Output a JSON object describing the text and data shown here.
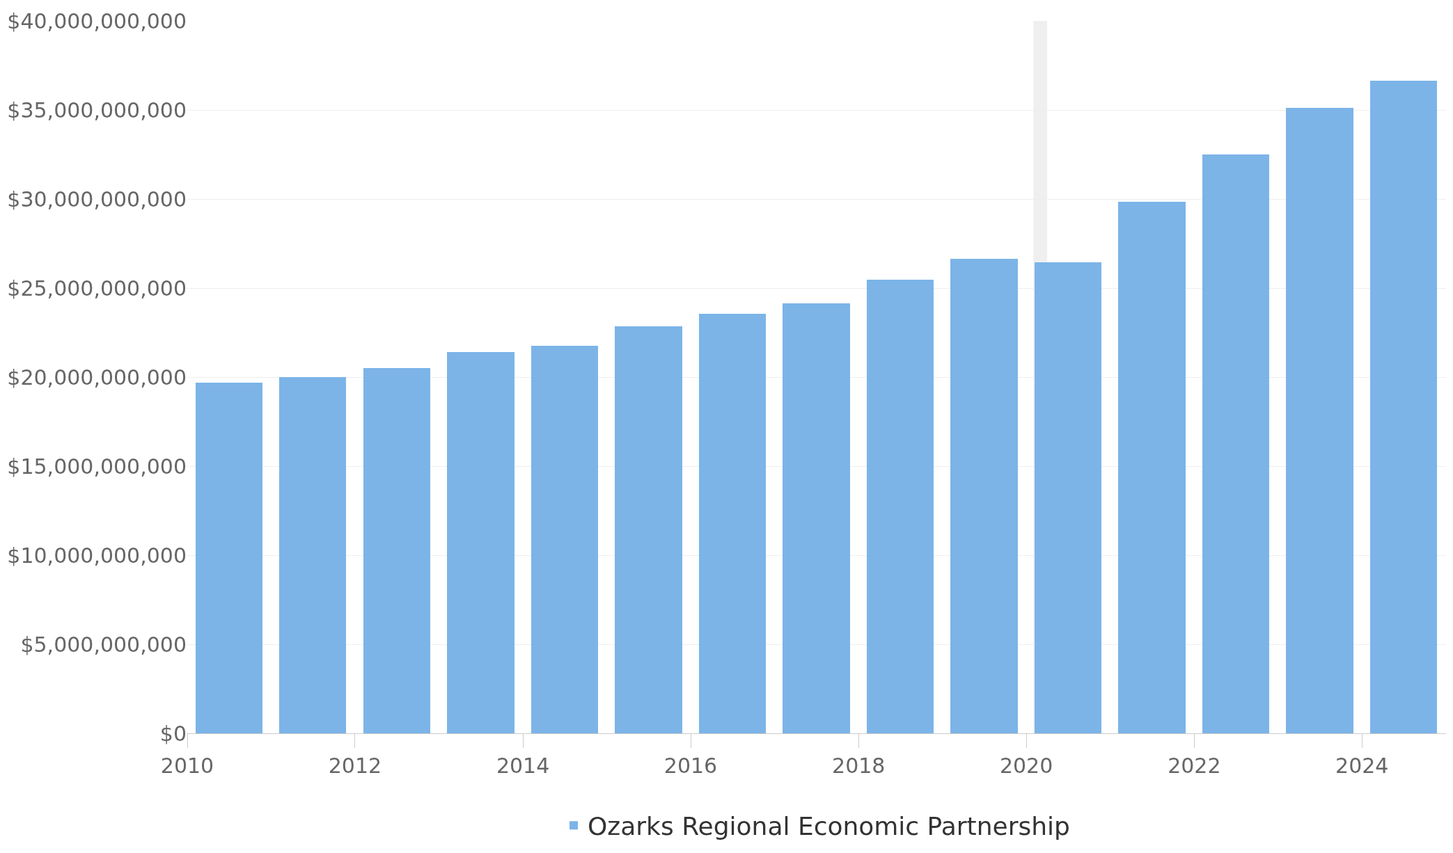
{
  "chart_data": {
    "type": "bar",
    "x": [
      "2010-07-01",
      "2011-07-01",
      "2012-07-01",
      "2013-07-01",
      "2014-07-01",
      "2015-07-01",
      "2016-07-01",
      "2017-07-01",
      "2018-07-01",
      "2019-07-01",
      "2020-07-01",
      "2021-07-01",
      "2022-07-01",
      "2023-07-01",
      "2024-07-01"
    ],
    "series": [
      {
        "name": "Ozarks Regional Economic Partnership",
        "color": "#7cb4e8",
        "values": [
          19700000000,
          20000000000,
          20500000000,
          21400000000,
          21750000000,
          22850000000,
          23550000000,
          24150000000,
          25450000000,
          26650000000,
          26450000000,
          29850000000,
          32500000000,
          35100000000,
          36650000000
        ]
      }
    ],
    "xlim": [
      "2010-01-01",
      "2025-01-01"
    ],
    "xticks": [
      {
        "value": "2010-01-01",
        "label": "2010"
      },
      {
        "value": "2012-01-01",
        "label": "2012"
      },
      {
        "value": "2014-01-01",
        "label": "2014"
      },
      {
        "value": "2016-01-01",
        "label": "2016"
      },
      {
        "value": "2018-01-01",
        "label": "2018"
      },
      {
        "value": "2020-01-01",
        "label": "2020"
      },
      {
        "value": "2022-01-01",
        "label": "2022"
      },
      {
        "value": "2024-01-01",
        "label": "2024"
      }
    ],
    "ylim": [
      0,
      40000000000
    ],
    "yticks": [
      {
        "value": 0,
        "label": "$0"
      },
      {
        "value": 5000000000,
        "label": "$5,000,000,000"
      },
      {
        "value": 10000000000,
        "label": "$10,000,000,000"
      },
      {
        "value": 15000000000,
        "label": "$15,000,000,000"
      },
      {
        "value": 20000000000,
        "label": "$20,000,000,000"
      },
      {
        "value": 25000000000,
        "label": "$25,000,000,000"
      },
      {
        "value": 30000000000,
        "label": "$30,000,000,000"
      },
      {
        "value": 35000000000,
        "label": "$35,000,000,000"
      },
      {
        "value": 40000000000,
        "label": "$40,000,000,000"
      }
    ],
    "bands": [
      {
        "axis": "x",
        "from": "2020-02-01",
        "to": "2020-04-01",
        "color": "#efefef"
      }
    ],
    "grid": "y",
    "legend": "bottom"
  }
}
